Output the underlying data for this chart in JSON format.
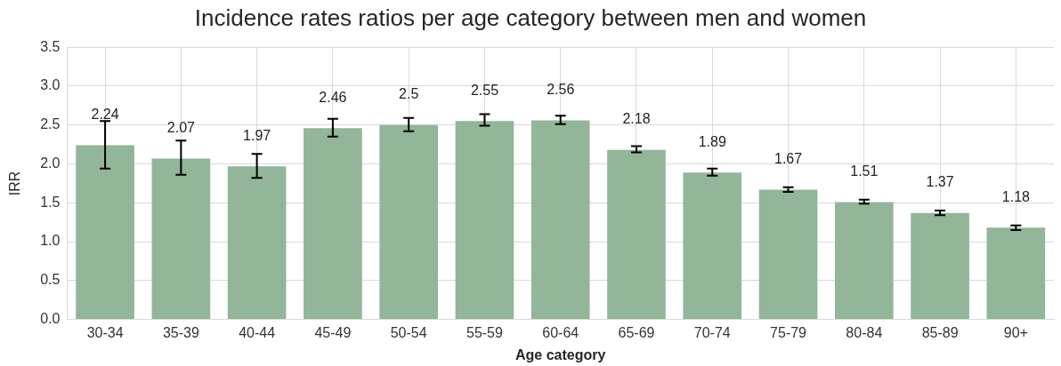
{
  "chart_data": {
    "type": "bar",
    "title": "Incidence rates ratios per age category between men and women",
    "xlabel": "Age category",
    "ylabel": "IRR",
    "categories": [
      "30-34",
      "35-39",
      "40-44",
      "45-49",
      "50-54",
      "55-59",
      "60-64",
      "65-69",
      "70-74",
      "75-79",
      "80-84",
      "85-89",
      "90+"
    ],
    "values": [
      2.24,
      2.07,
      1.97,
      2.46,
      2.5,
      2.55,
      2.56,
      2.18,
      1.89,
      1.67,
      1.51,
      1.37,
      1.18
    ],
    "errors": [
      [
        1.94,
        2.55
      ],
      [
        1.86,
        2.3
      ],
      [
        1.82,
        2.13
      ],
      [
        2.35,
        2.58
      ],
      [
        2.42,
        2.59
      ],
      [
        2.49,
        2.64
      ],
      [
        2.51,
        2.62
      ],
      [
        2.15,
        2.23
      ],
      [
        1.85,
        1.94
      ],
      [
        1.64,
        1.7
      ],
      [
        1.49,
        1.54
      ],
      [
        1.34,
        1.4
      ],
      [
        1.15,
        1.21
      ]
    ],
    "color": "#93b59a",
    "ylim": [
      0,
      3.5
    ],
    "yticks": [
      {
        "value": 0,
        "label": "0.0"
      },
      0.5,
      {
        "value": 1,
        "label": "1.0"
      },
      1.5,
      {
        "value": 2,
        "label": "2.0"
      },
      2.5,
      {
        "value": 3,
        "label": "3.0"
      },
      3.5
    ],
    "grid": true,
    "data_labels": true
  }
}
